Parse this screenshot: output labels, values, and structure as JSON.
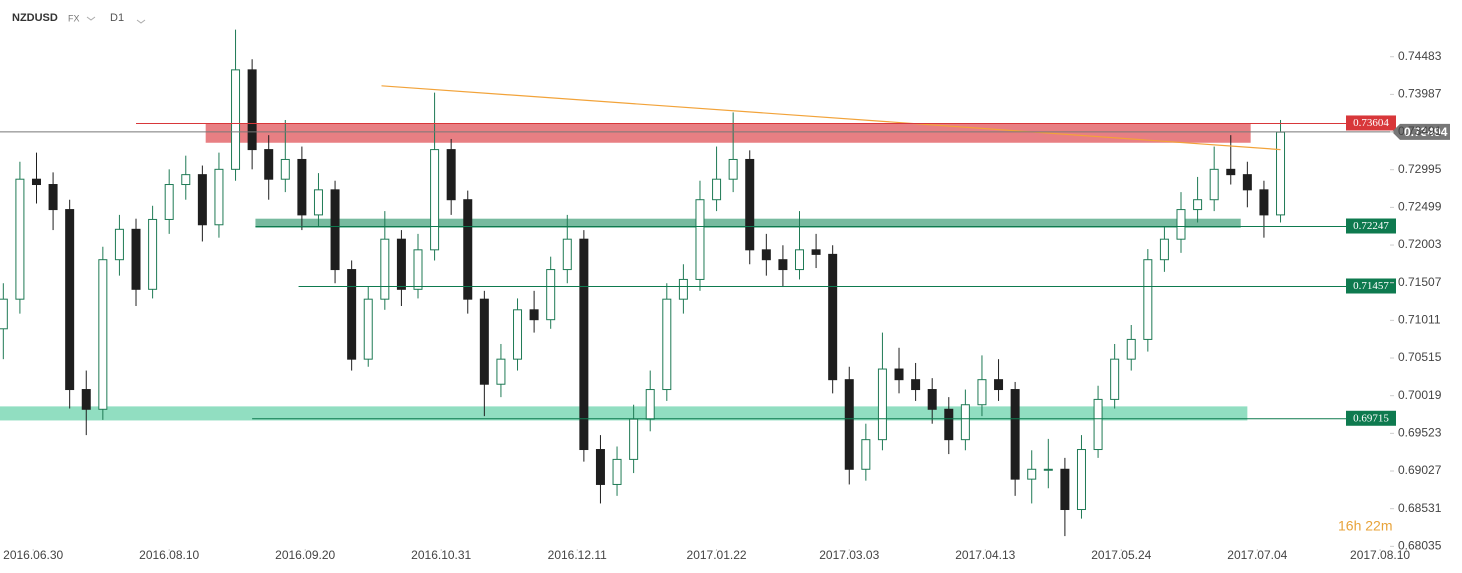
{
  "header": {
    "symbol": "NZDUSD",
    "market": "FX",
    "timeframe": "D1"
  },
  "chart_data": {
    "type": "candlestick",
    "countdown": "16h 22m",
    "xlim": [
      "2016-06-20",
      "2017-08-13"
    ],
    "xticks": [
      {
        "value": "2016-06-30",
        "label": "2016.06.30"
      },
      {
        "value": "2016-08-10",
        "label": "2016.08.10"
      },
      {
        "value": "2016-09-20",
        "label": "2016.09.20"
      },
      {
        "value": "2016-10-31",
        "label": "2016.10.31"
      },
      {
        "value": "2016-12-11",
        "label": "2016.12.11"
      },
      {
        "value": "2017-01-22",
        "label": "2017.01.22"
      },
      {
        "value": "2017-03-03",
        "label": "2017.03.03"
      },
      {
        "value": "2017-04-13",
        "label": "2017.04.13"
      },
      {
        "value": "2017-05-24",
        "label": "2017.05.24"
      },
      {
        "value": "2017-07-04",
        "label": "2017.07.04"
      },
      {
        "value": "2017-08-10",
        "label": "2017.08.10"
      }
    ],
    "ylim": [
      0.68,
      0.7523
    ],
    "yticks": [
      0.74483,
      0.73987,
      0.73491,
      0.72995,
      0.72499,
      0.72003,
      0.71507,
      0.71011,
      0.70515,
      0.70019,
      0.69523,
      0.69027,
      0.68531,
      0.68035
    ],
    "grid": false,
    "series": [
      {
        "up_color": "#1f7a55",
        "down_color": "#1e1e1e",
        "x": [
          "2016-06-21",
          "2016-06-26",
          "2016-07-01",
          "2016-07-06",
          "2016-07-11",
          "2016-07-16",
          "2016-07-21",
          "2016-07-26",
          "2016-07-31",
          "2016-08-05",
          "2016-08-10",
          "2016-08-15",
          "2016-08-20",
          "2016-08-25",
          "2016-08-30",
          "2016-09-04",
          "2016-09-09",
          "2016-09-14",
          "2016-09-19",
          "2016-09-24",
          "2016-09-29",
          "2016-10-04",
          "2016-10-09",
          "2016-10-14",
          "2016-10-19",
          "2016-10-24",
          "2016-10-29",
          "2016-11-03",
          "2016-11-08",
          "2016-11-13",
          "2016-11-18",
          "2016-11-23",
          "2016-11-28",
          "2016-12-03",
          "2016-12-08",
          "2016-12-13",
          "2016-12-18",
          "2016-12-23",
          "2016-12-28",
          "2017-01-02",
          "2017-01-07",
          "2017-01-12",
          "2017-01-17",
          "2017-01-22",
          "2017-01-27",
          "2017-02-01",
          "2017-02-06",
          "2017-02-11",
          "2017-02-16",
          "2017-02-21",
          "2017-02-26",
          "2017-03-03",
          "2017-03-08",
          "2017-03-13",
          "2017-03-18",
          "2017-03-23",
          "2017-03-28",
          "2017-04-02",
          "2017-04-07",
          "2017-04-12",
          "2017-04-17",
          "2017-04-22",
          "2017-04-27",
          "2017-05-02",
          "2017-05-07",
          "2017-05-12",
          "2017-05-17",
          "2017-05-22",
          "2017-05-27",
          "2017-06-01",
          "2017-06-06",
          "2017-06-11",
          "2017-06-16",
          "2017-06-21",
          "2017-06-26",
          "2017-07-01",
          "2017-07-06",
          "2017-07-11"
        ],
        "open": [
          0.709,
          0.7129,
          0.7287,
          0.728,
          0.7247,
          0.701,
          0.6984,
          0.7181,
          0.7221,
          0.7142,
          0.7234,
          0.728,
          0.7293,
          0.7227,
          0.73,
          0.7431,
          0.7326,
          0.7287,
          0.7313,
          0.724,
          0.7273,
          0.7168,
          0.705,
          0.7129,
          0.7208,
          0.7142,
          0.7194,
          0.7326,
          0.726,
          0.7129,
          0.7017,
          0.705,
          0.7115,
          0.7102,
          0.7168,
          0.7208,
          0.6931,
          0.6885,
          0.6918,
          0.6971,
          0.701,
          0.7129,
          0.7155,
          0.726,
          0.7287,
          0.7313,
          0.7194,
          0.7181,
          0.7168,
          0.7194,
          0.7188,
          0.7023,
          0.6905,
          0.6944,
          0.7037,
          0.7023,
          0.701,
          0.6984,
          0.6944,
          0.699,
          0.7023,
          0.701,
          0.6892,
          0.6905,
          0.6905,
          0.6852,
          0.6931,
          0.6997,
          0.705,
          0.7076,
          0.7181,
          0.7208,
          0.7247,
          0.726,
          0.73,
          0.7293,
          0.7273,
          0.724
        ],
        "high": [
          0.715,
          0.731,
          0.7322,
          0.7296,
          0.726,
          0.7035,
          0.7198,
          0.724,
          0.7235,
          0.7252,
          0.73,
          0.7318,
          0.7305,
          0.7322,
          0.7484,
          0.7445,
          0.7345,
          0.7365,
          0.733,
          0.7295,
          0.7285,
          0.718,
          0.7145,
          0.7245,
          0.722,
          0.7215,
          0.7401,
          0.734,
          0.7272,
          0.714,
          0.707,
          0.713,
          0.714,
          0.7185,
          0.724,
          0.722,
          0.695,
          0.6935,
          0.699,
          0.7035,
          0.715,
          0.7175,
          0.7285,
          0.733,
          0.7375,
          0.7325,
          0.7215,
          0.72,
          0.7245,
          0.7215,
          0.72,
          0.704,
          0.6965,
          0.7085,
          0.7065,
          0.7045,
          0.7025,
          0.7,
          0.701,
          0.7055,
          0.705,
          0.702,
          0.693,
          0.6945,
          0.692,
          0.695,
          0.7015,
          0.707,
          0.7095,
          0.7195,
          0.7225,
          0.727,
          0.729,
          0.733,
          0.7345,
          0.731,
          0.7285,
          0.7365
        ],
        "low": [
          0.705,
          0.711,
          0.7255,
          0.722,
          0.6985,
          0.695,
          0.697,
          0.716,
          0.712,
          0.713,
          0.7215,
          0.726,
          0.7205,
          0.721,
          0.7285,
          0.73,
          0.726,
          0.727,
          0.722,
          0.7225,
          0.715,
          0.7035,
          0.704,
          0.7115,
          0.712,
          0.713,
          0.718,
          0.724,
          0.711,
          0.6975,
          0.7,
          0.7035,
          0.7085,
          0.709,
          0.715,
          0.6915,
          0.686,
          0.687,
          0.69,
          0.6955,
          0.6995,
          0.711,
          0.714,
          0.7245,
          0.727,
          0.7175,
          0.716,
          0.7145,
          0.7155,
          0.717,
          0.7005,
          0.6885,
          0.689,
          0.693,
          0.7005,
          0.6995,
          0.6965,
          0.6925,
          0.693,
          0.6975,
          0.6995,
          0.687,
          0.686,
          0.688,
          0.6817,
          0.684,
          0.692,
          0.6985,
          0.7035,
          0.706,
          0.7165,
          0.719,
          0.723,
          0.7245,
          0.728,
          0.725,
          0.721,
          0.723
        ],
        "close": [
          0.7129,
          0.7287,
          0.728,
          0.7247,
          0.701,
          0.6984,
          0.7181,
          0.7221,
          0.7142,
          0.7234,
          0.728,
          0.7293,
          0.7227,
          0.73,
          0.7431,
          0.7326,
          0.7287,
          0.7313,
          0.724,
          0.7273,
          0.7168,
          0.705,
          0.7129,
          0.7208,
          0.7142,
          0.7194,
          0.7326,
          0.726,
          0.7129,
          0.7017,
          0.705,
          0.7115,
          0.7102,
          0.7168,
          0.7208,
          0.6931,
          0.6885,
          0.6918,
          0.6971,
          0.701,
          0.7129,
          0.7155,
          0.726,
          0.7287,
          0.7313,
          0.7194,
          0.7181,
          0.7168,
          0.7194,
          0.7188,
          0.7023,
          0.6905,
          0.6944,
          0.7037,
          0.7023,
          0.701,
          0.6984,
          0.6944,
          0.699,
          0.7023,
          0.701,
          0.6892,
          0.6905,
          0.6905,
          0.6852,
          0.6931,
          0.6997,
          0.705,
          0.7076,
          0.7181,
          0.7208,
          0.7247,
          0.726,
          0.73,
          0.7293,
          0.7273,
          0.724,
          0.7349
        ]
      }
    ],
    "zones": [
      {
        "x": [
          "2016-08-21",
          "2017-07-02"
        ],
        "y": [
          0.7335,
          0.736
        ],
        "color": "#e4686d"
      },
      {
        "x": [
          "2016-09-05",
          "2017-06-29"
        ],
        "y": [
          0.7223,
          0.7235
        ],
        "color": "#5fae8e"
      },
      {
        "x": [
          "2016-06-20",
          "2017-07-01"
        ],
        "y": [
          0.69693,
          0.69878
        ],
        "color": "#7ed8b6"
      }
    ],
    "trendline": {
      "x": [
        "2016-10-13",
        "2017-07-11"
      ],
      "y": [
        0.741,
        0.7326
      ],
      "color": "#f2a33a"
    },
    "levels": [
      {
        "value": 0.73604,
        "start": "2016-07-31",
        "color": "#d8373a"
      },
      {
        "value": 0.73494,
        "start": "2016-06-20",
        "color": "#777777"
      },
      {
        "value": 0.72247,
        "start": "2016-09-05",
        "color": "#0e7a4f"
      },
      {
        "value": 0.71457,
        "start": "2016-09-18",
        "color": "#0e7a4f"
      },
      {
        "value": 0.69715,
        "start": "2016-09-04",
        "color": "#0e7a4f"
      }
    ]
  }
}
